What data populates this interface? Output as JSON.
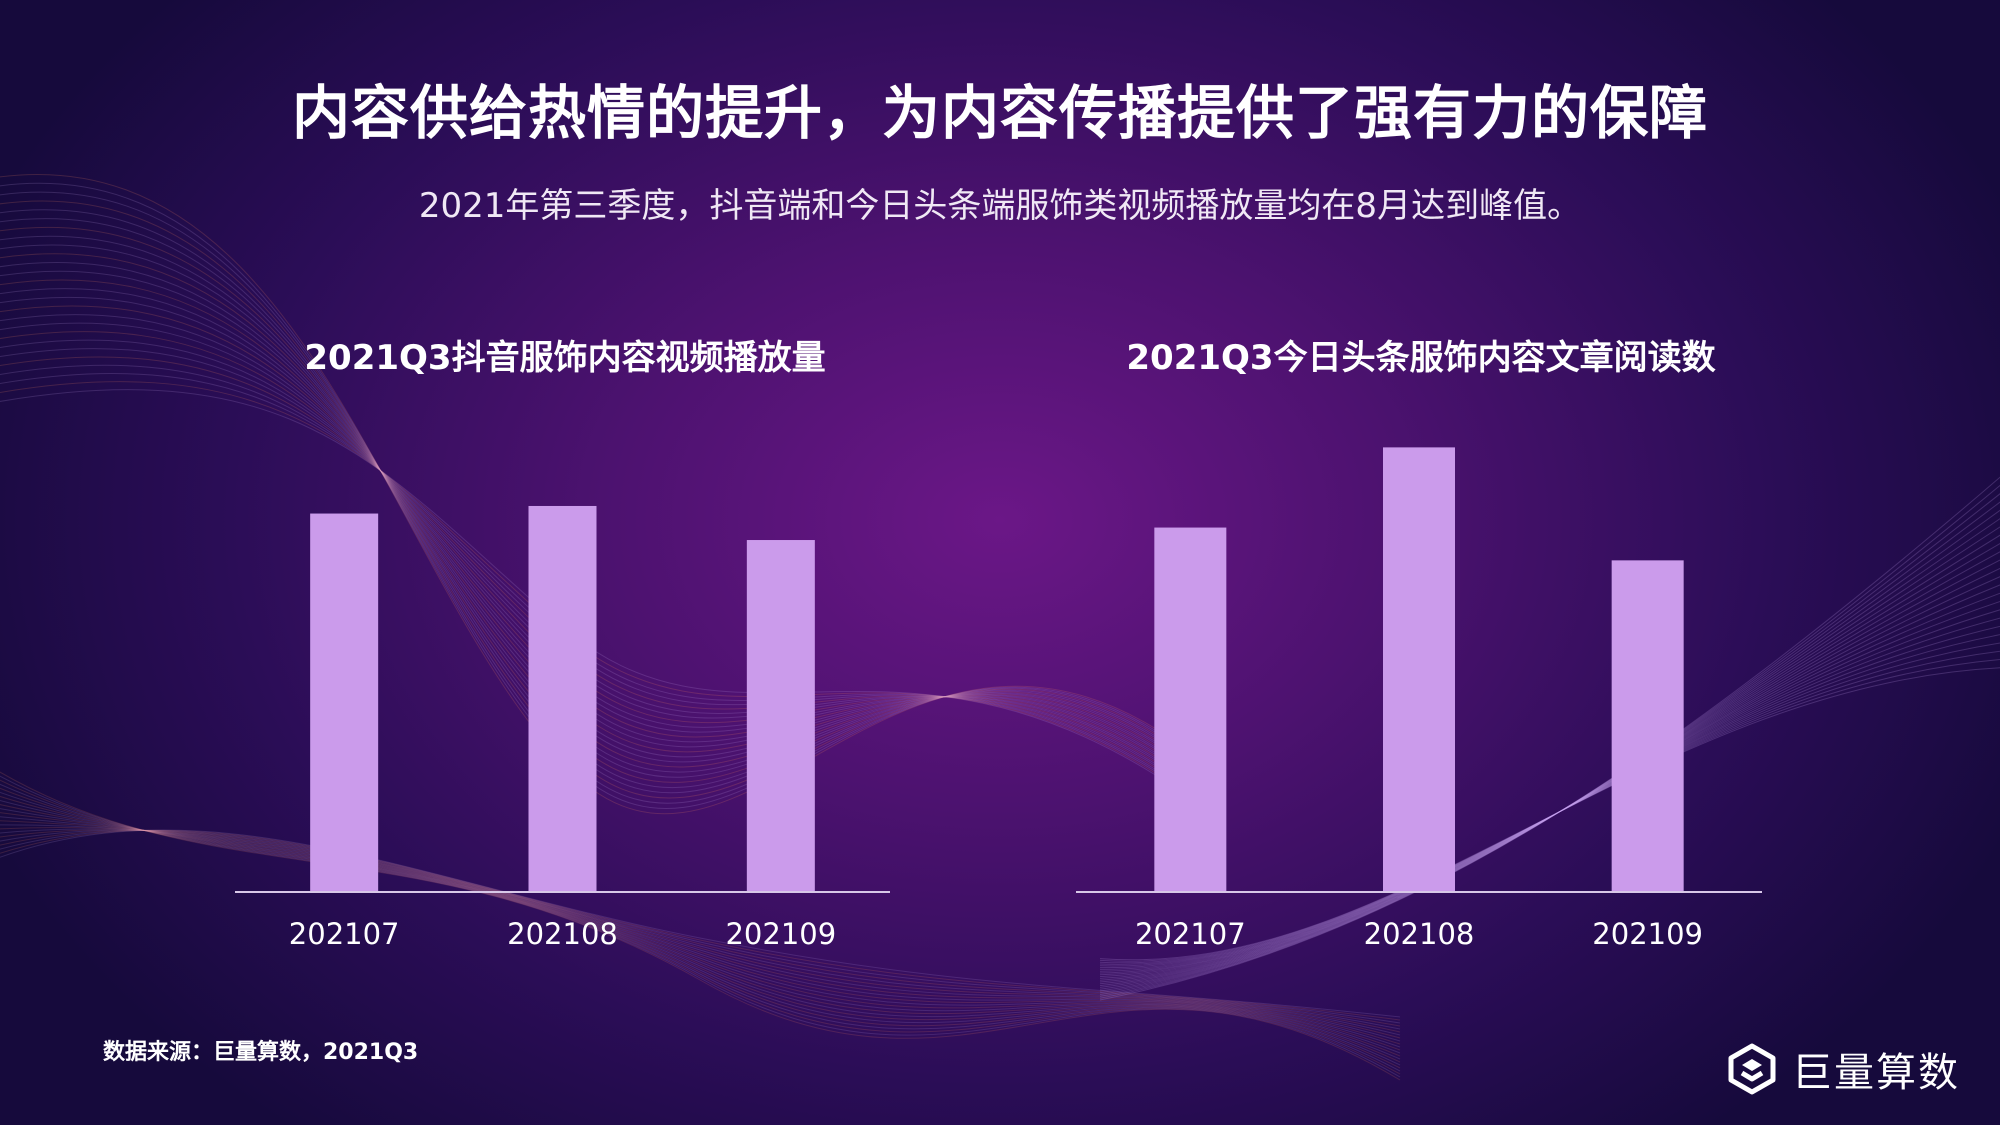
{
  "page": {
    "title": "内容供给热情的提升，为内容传播提供了强有力的保障",
    "subtitle": "2021年第三季度，抖音端和今日头条端服饰类视频播放量均在8月达到峰值。",
    "source": "数据来源：巨量算数，2021Q3",
    "brand_name": "巨量算数"
  },
  "colors": {
    "bar": "#cb9beb",
    "axis": "#d8c8e8",
    "tick_label": "#ffffff",
    "line_warm": "#ff8a5c",
    "line_cool": "#c7a6f0"
  },
  "chart_data": [
    {
      "type": "bar",
      "title": "2021Q3抖音服饰内容视频播放量",
      "categories": [
        "202107",
        "202108",
        "202109"
      ],
      "values": [
        100,
        102,
        93
      ],
      "ylim": [
        0,
        130
      ],
      "grid": false,
      "legend": "none"
    },
    {
      "type": "bar",
      "title": "2021Q3今日头条服饰内容文章阅读数",
      "categories": [
        "202107",
        "202108",
        "202109"
      ],
      "values": [
        100,
        122,
        91
      ],
      "ylim": [
        0,
        135
      ],
      "grid": false,
      "legend": "none"
    }
  ]
}
